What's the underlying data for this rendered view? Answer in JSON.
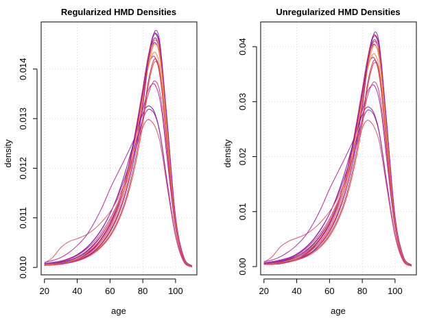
{
  "chart_data": [
    {
      "type": "line",
      "title": "Regularized HMD Densities",
      "xlabel": "age",
      "ylabel": "density",
      "xlim": [
        18,
        113
      ],
      "ylim": [
        0.00985,
        0.01495
      ],
      "xticks": [
        20,
        40,
        60,
        80,
        100
      ],
      "xtick_labels": [
        "20",
        "40",
        "60",
        "80",
        "100"
      ],
      "yticks": [
        0.01,
        0.011,
        0.012,
        0.013,
        0.014
      ],
      "ytick_labels": [
        "0.010",
        "0.011",
        "0.012",
        "0.013",
        "0.014"
      ],
      "grid": true,
      "x": [
        20,
        25,
        30,
        35,
        40,
        45,
        50,
        55,
        60,
        65,
        70,
        75,
        80,
        83,
        86,
        88,
        90,
        92,
        95,
        100,
        105,
        110
      ],
      "series": [
        {
          "color": "#6a0dad",
          "values": [
            0.01007,
            0.01008,
            0.0101,
            0.01014,
            0.01021,
            0.01031,
            0.01046,
            0.01066,
            0.01093,
            0.0113,
            0.01185,
            0.01258,
            0.01345,
            0.01418,
            0.01465,
            0.01472,
            0.01455,
            0.014,
            0.0129,
            0.011,
            0.0102,
            0.01003
          ]
        },
        {
          "color": "#8b1a9b",
          "values": [
            0.01006,
            0.01007,
            0.01009,
            0.01013,
            0.01019,
            0.01029,
            0.01044,
            0.01064,
            0.01092,
            0.0113,
            0.01186,
            0.01262,
            0.01355,
            0.01415,
            0.01448,
            0.01452,
            0.01432,
            0.01378,
            0.01268,
            0.01092,
            0.01018,
            0.01002
          ]
        },
        {
          "color": "#a0148c",
          "values": [
            0.01005,
            0.01006,
            0.01008,
            0.01011,
            0.01016,
            0.01025,
            0.01038,
            0.01058,
            0.01085,
            0.01124,
            0.01182,
            0.01263,
            0.0136,
            0.0142,
            0.01455,
            0.01462,
            0.0144,
            0.01385,
            0.01272,
            0.01095,
            0.01019,
            0.01002
          ]
        },
        {
          "color": "#c21d6e",
          "values": [
            0.01006,
            0.01007,
            0.01009,
            0.01012,
            0.01018,
            0.01027,
            0.0104,
            0.0106,
            0.01088,
            0.01128,
            0.01185,
            0.01265,
            0.01358,
            0.01405,
            0.01425,
            0.0142,
            0.01395,
            0.01345,
            0.01245,
            0.01085,
            0.01016,
            0.01002
          ]
        },
        {
          "color": "#d9305c",
          "values": [
            0.01005,
            0.01006,
            0.01008,
            0.01011,
            0.01016,
            0.01024,
            0.01036,
            0.01054,
            0.0108,
            0.01118,
            0.01172,
            0.0125,
            0.01348,
            0.0142,
            0.01462,
            0.0147,
            0.0145,
            0.01392,
            0.0128,
            0.01098,
            0.0102,
            0.01003
          ]
        },
        {
          "color": "#e8604a",
          "values": [
            0.01005,
            0.01006,
            0.01008,
            0.01011,
            0.01015,
            0.01022,
            0.01033,
            0.0105,
            0.01075,
            0.0111,
            0.01162,
            0.01238,
            0.01335,
            0.01405,
            0.0145,
            0.01458,
            0.0144,
            0.01385,
            0.01275,
            0.01096,
            0.01019,
            0.01002
          ]
        },
        {
          "color": "#f0903e",
          "values": [
            0.01004,
            0.01005,
            0.01007,
            0.0101,
            0.01014,
            0.01021,
            0.01031,
            0.01047,
            0.0107,
            0.01104,
            0.01155,
            0.01228,
            0.01325,
            0.01398,
            0.01442,
            0.0145,
            0.01432,
            0.01378,
            0.01268,
            0.01093,
            0.01018,
            0.01002
          ]
        },
        {
          "color": "#7b1fa2",
          "values": [
            0.01007,
            0.01009,
            0.01012,
            0.01017,
            0.01025,
            0.01037,
            0.01054,
            0.01077,
            0.01108,
            0.01148,
            0.012,
            0.01258,
            0.0131,
            0.01325,
            0.0132,
            0.01305,
            0.0128,
            0.0124,
            0.0117,
            0.01065,
            0.01012,
            0.01001
          ]
        },
        {
          "color": "#9c27b0",
          "values": [
            0.01008,
            0.0101,
            0.01013,
            0.01018,
            0.01026,
            0.01038,
            0.01055,
            0.01078,
            0.01108,
            0.01145,
            0.0119,
            0.01243,
            0.01298,
            0.01318,
            0.01315,
            0.01302,
            0.01278,
            0.01238,
            0.01168,
            0.01064,
            0.01012,
            0.01001
          ]
        },
        {
          "color": "#e05070",
          "values": [
            0.01009,
            0.0102,
            0.0104,
            0.01052,
            0.01058,
            0.01065,
            0.01076,
            0.01092,
            0.01112,
            0.0114,
            0.0118,
            0.01232,
            0.01282,
            0.01298,
            0.01292,
            0.0128,
            0.0126,
            0.01225,
            0.0116,
            0.01062,
            0.01011,
            0.01001
          ]
        },
        {
          "color": "#b02aa0",
          "values": [
            0.0101,
            0.01014,
            0.0102,
            0.0103,
            0.01044,
            0.01062,
            0.01088,
            0.0112,
            0.01158,
            0.01192,
            0.01225,
            0.01262,
            0.01318,
            0.01355,
            0.0137,
            0.01365,
            0.01345,
            0.01305,
            0.01215,
            0.01078,
            0.01014,
            0.01001
          ]
        },
        {
          "color": "#d23c7a",
          "values": [
            0.01006,
            0.01008,
            0.01011,
            0.01016,
            0.01024,
            0.01035,
            0.0105,
            0.01071,
            0.01098,
            0.01132,
            0.01176,
            0.01232,
            0.013,
            0.01345,
            0.01372,
            0.01375,
            0.0136,
            0.01318,
            0.01228,
            0.0108,
            0.01015,
            0.01001
          ]
        },
        {
          "color": "#f28a50",
          "values": [
            0.01005,
            0.01006,
            0.01008,
            0.01012,
            0.01018,
            0.01028,
            0.01043,
            0.01064,
            0.01092,
            0.0113,
            0.0118,
            0.0125,
            0.0134,
            0.01398,
            0.0143,
            0.01432,
            0.01412,
            0.0136,
            0.01255,
            0.01088,
            0.01017,
            0.01002
          ]
        },
        {
          "color": "#c83264",
          "values": [
            0.01004,
            0.01005,
            0.01007,
            0.0101,
            0.01014,
            0.0102,
            0.0103,
            0.01044,
            0.01065,
            0.01096,
            0.01142,
            0.0121,
            0.013,
            0.01368,
            0.01412,
            0.0142,
            0.01402,
            0.0135,
            0.01246,
            0.01085,
            0.01016,
            0.01002
          ]
        },
        {
          "color": "#8e24aa",
          "values": [
            0.01004,
            0.01005,
            0.01007,
            0.0101,
            0.01014,
            0.01021,
            0.01032,
            0.01048,
            0.01072,
            0.01106,
            0.01155,
            0.01225,
            0.01325,
            0.0141,
            0.01462,
            0.01478,
            0.01462,
            0.01405,
            0.0129,
            0.01102,
            0.01021,
            0.01003
          ]
        },
        {
          "color": "#e94c4c",
          "values": [
            0.01004,
            0.01005,
            0.01006,
            0.01009,
            0.01013,
            0.01019,
            0.01028,
            0.01042,
            0.01062,
            0.01092,
            0.01136,
            0.012,
            0.01288,
            0.0136,
            0.01405,
            0.01415,
            0.01398,
            0.01346,
            0.01242,
            0.01083,
            0.01016,
            0.01002
          ]
        }
      ]
    },
    {
      "type": "line",
      "title": "Unregularized HMD Densities",
      "xlabel": "age",
      "ylabel": "density",
      "xlim": [
        18,
        113
      ],
      "ylim": [
        -0.0015,
        0.0445
      ],
      "xticks": [
        20,
        40,
        60,
        80,
        100
      ],
      "xtick_labels": [
        "20",
        "40",
        "60",
        "80",
        "100"
      ],
      "yticks": [
        0.0,
        0.01,
        0.02,
        0.03,
        0.04
      ],
      "ytick_labels": [
        "0.00",
        "0.01",
        "0.02",
        "0.03",
        "0.04"
      ],
      "grid": true,
      "x": [
        20,
        25,
        30,
        35,
        40,
        45,
        50,
        55,
        60,
        65,
        70,
        75,
        80,
        83,
        86,
        88,
        90,
        92,
        95,
        100,
        105,
        110
      ],
      "series": [
        {
          "color": "#6a0dad",
          "values": [
            0.0006,
            0.0007,
            0.0009,
            0.0013,
            0.0019,
            0.0028,
            0.0041,
            0.0059,
            0.0083,
            0.0116,
            0.0165,
            0.023,
            0.0308,
            0.0373,
            0.0415,
            0.0421,
            0.0406,
            0.0357,
            0.0258,
            0.0089,
            0.0018,
            0.0003
          ]
        },
        {
          "color": "#8b1a9b",
          "values": [
            0.0005,
            0.0006,
            0.0008,
            0.0012,
            0.0017,
            0.0026,
            0.0039,
            0.0057,
            0.0082,
            0.0116,
            0.0166,
            0.0234,
            0.0317,
            0.037,
            0.04,
            0.0403,
            0.0385,
            0.0337,
            0.0239,
            0.0082,
            0.0016,
            0.0002
          ]
        },
        {
          "color": "#a0148c",
          "values": [
            0.0004,
            0.0005,
            0.0007,
            0.001,
            0.0014,
            0.0022,
            0.0034,
            0.0052,
            0.0076,
            0.0111,
            0.0163,
            0.0235,
            0.0322,
            0.0375,
            0.0406,
            0.0412,
            0.0393,
            0.0344,
            0.0243,
            0.0085,
            0.0017,
            0.0002
          ]
        },
        {
          "color": "#c21d6e",
          "values": [
            0.0005,
            0.0006,
            0.0008,
            0.0011,
            0.0016,
            0.0024,
            0.0036,
            0.0054,
            0.0079,
            0.0114,
            0.0165,
            0.0237,
            0.032,
            0.0362,
            0.038,
            0.0375,
            0.0353,
            0.0308,
            0.0219,
            0.0076,
            0.0014,
            0.0002
          ]
        },
        {
          "color": "#d9305c",
          "values": [
            0.0004,
            0.0005,
            0.0007,
            0.001,
            0.0014,
            0.0021,
            0.0032,
            0.0048,
            0.0071,
            0.0105,
            0.0153,
            0.0223,
            0.0311,
            0.0375,
            0.0412,
            0.0419,
            0.0402,
            0.035,
            0.025,
            0.0087,
            0.0018,
            0.0003
          ]
        },
        {
          "color": "#e8604a",
          "values": [
            0.0004,
            0.0005,
            0.0007,
            0.001,
            0.0013,
            0.002,
            0.0029,
            0.0045,
            0.0067,
            0.0098,
            0.0145,
            0.0213,
            0.0299,
            0.0362,
            0.0402,
            0.0409,
            0.0393,
            0.0344,
            0.0245,
            0.0086,
            0.0017,
            0.0002
          ]
        },
        {
          "color": "#f0903e",
          "values": [
            0.0004,
            0.0004,
            0.0006,
            0.0009,
            0.0012,
            0.0019,
            0.0028,
            0.0042,
            0.0062,
            0.0093,
            0.0138,
            0.0204,
            0.029,
            0.0355,
            0.0395,
            0.0402,
            0.0386,
            0.0338,
            0.0239,
            0.0083,
            0.0016,
            0.0002
          ]
        },
        {
          "color": "#7b1fa2",
          "values": [
            0.0006,
            0.0008,
            0.0011,
            0.0015,
            0.0022,
            0.0033,
            0.0048,
            0.0069,
            0.0096,
            0.0132,
            0.0178,
            0.023,
            0.0276,
            0.029,
            0.0285,
            0.0272,
            0.025,
            0.0214,
            0.0152,
            0.0058,
            0.0011,
            0.0001
          ]
        },
        {
          "color": "#9c27b0",
          "values": [
            0.0007,
            0.0009,
            0.0012,
            0.0016,
            0.0023,
            0.0034,
            0.0049,
            0.007,
            0.0096,
            0.0129,
            0.017,
            0.0217,
            0.0265,
            0.0284,
            0.0281,
            0.0269,
            0.0248,
            0.0212,
            0.015,
            0.0057,
            0.0011,
            0.0001
          ]
        },
        {
          "color": "#e05070",
          "values": [
            0.0008,
            0.0018,
            0.0036,
            0.0046,
            0.0052,
            0.0058,
            0.0068,
            0.0082,
            0.01,
            0.0125,
            0.0161,
            0.0207,
            0.0252,
            0.0266,
            0.026,
            0.0249,
            0.0232,
            0.02,
            0.0143,
            0.0055,
            0.001,
            0.0001
          ]
        },
        {
          "color": "#b02aa0",
          "values": [
            0.0009,
            0.0012,
            0.0018,
            0.0027,
            0.0039,
            0.0055,
            0.0078,
            0.0107,
            0.0141,
            0.0171,
            0.0201,
            0.0234,
            0.0284,
            0.0317,
            0.033,
            0.0326,
            0.0308,
            0.0272,
            0.0192,
            0.007,
            0.0012,
            0.0001
          ]
        },
        {
          "color": "#d23c7a",
          "values": [
            0.0005,
            0.0007,
            0.001,
            0.0014,
            0.0021,
            0.0031,
            0.0045,
            0.0063,
            0.0087,
            0.0118,
            0.0157,
            0.0207,
            0.0268,
            0.0308,
            0.0332,
            0.0335,
            0.0321,
            0.0284,
            0.0204,
            0.0071,
            0.0013,
            0.0001
          ]
        },
        {
          "color": "#f28a50",
          "values": [
            0.0004,
            0.0005,
            0.0007,
            0.0011,
            0.0016,
            0.0025,
            0.0038,
            0.0057,
            0.0082,
            0.0116,
            0.0161,
            0.0223,
            0.0303,
            0.0355,
            0.0384,
            0.0385,
            0.0367,
            0.0321,
            0.0227,
            0.0078,
            0.0015,
            0.0002
          ]
        },
        {
          "color": "#c83264",
          "values": [
            0.0004,
            0.0004,
            0.0006,
            0.0009,
            0.0012,
            0.0018,
            0.0027,
            0.0039,
            0.0058,
            0.0086,
            0.0127,
            0.0188,
            0.0268,
            0.0329,
            0.0368,
            0.0375,
            0.0359,
            0.0313,
            0.022,
            0.0076,
            0.0014,
            0.0002
          ]
        },
        {
          "color": "#8e24aa",
          "values": [
            0.0004,
            0.0004,
            0.0006,
            0.0009,
            0.0012,
            0.0019,
            0.0028,
            0.0043,
            0.0064,
            0.0095,
            0.0138,
            0.0201,
            0.029,
            0.0366,
            0.0412,
            0.0427,
            0.0412,
            0.0361,
            0.0258,
            0.0091,
            0.0019,
            0.0003
          ]
        },
        {
          "color": "#e94c4c",
          "values": [
            0.0004,
            0.0004,
            0.0005,
            0.0008,
            0.0012,
            0.0017,
            0.0025,
            0.0037,
            0.0055,
            0.0082,
            0.0121,
            0.0179,
            0.0257,
            0.0322,
            0.0362,
            0.0371,
            0.0356,
            0.0309,
            0.0216,
            0.0074,
            0.0014,
            0.0002
          ]
        }
      ]
    }
  ]
}
